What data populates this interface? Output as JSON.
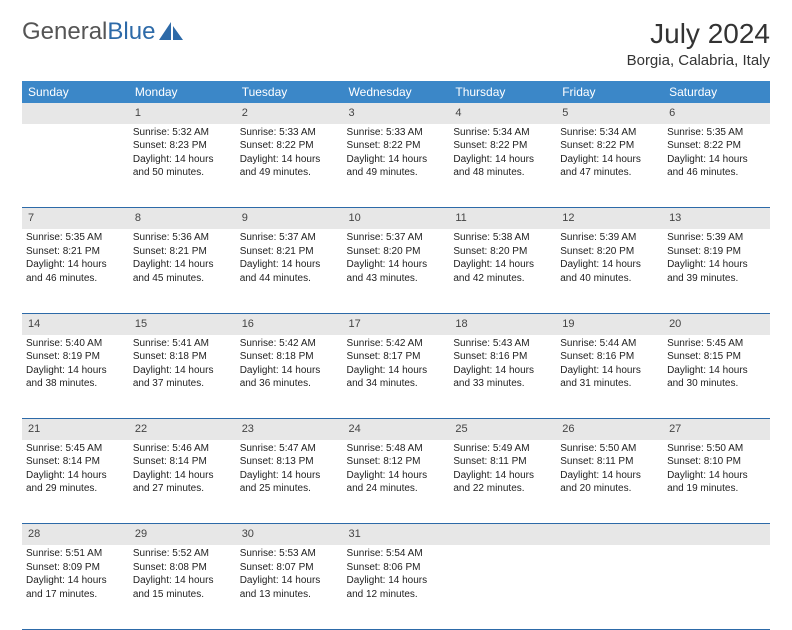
{
  "logo": {
    "text1": "General",
    "text2": "Blue"
  },
  "title": "July 2024",
  "location": "Borgia, Calabria, Italy",
  "colors": {
    "header_bg": "#3b87c8",
    "header_fg": "#ffffff",
    "daynum_bg": "#e7e7e7",
    "border": "#2d6aa8",
    "logo_gray": "#555555",
    "logo_blue": "#2d6aa8"
  },
  "weekdays": [
    "Sunday",
    "Monday",
    "Tuesday",
    "Wednesday",
    "Thursday",
    "Friday",
    "Saturday"
  ],
  "weeks": [
    {
      "nums": [
        "",
        "1",
        "2",
        "3",
        "4",
        "5",
        "6"
      ],
      "cells": [
        null,
        {
          "sr": "5:32 AM",
          "ss": "8:23 PM",
          "dl": "14 hours and 50 minutes."
        },
        {
          "sr": "5:33 AM",
          "ss": "8:22 PM",
          "dl": "14 hours and 49 minutes."
        },
        {
          "sr": "5:33 AM",
          "ss": "8:22 PM",
          "dl": "14 hours and 49 minutes."
        },
        {
          "sr": "5:34 AM",
          "ss": "8:22 PM",
          "dl": "14 hours and 48 minutes."
        },
        {
          "sr": "5:34 AM",
          "ss": "8:22 PM",
          "dl": "14 hours and 47 minutes."
        },
        {
          "sr": "5:35 AM",
          "ss": "8:22 PM",
          "dl": "14 hours and 46 minutes."
        }
      ]
    },
    {
      "nums": [
        "7",
        "8",
        "9",
        "10",
        "11",
        "12",
        "13"
      ],
      "cells": [
        {
          "sr": "5:35 AM",
          "ss": "8:21 PM",
          "dl": "14 hours and 46 minutes."
        },
        {
          "sr": "5:36 AM",
          "ss": "8:21 PM",
          "dl": "14 hours and 45 minutes."
        },
        {
          "sr": "5:37 AM",
          "ss": "8:21 PM",
          "dl": "14 hours and 44 minutes."
        },
        {
          "sr": "5:37 AM",
          "ss": "8:20 PM",
          "dl": "14 hours and 43 minutes."
        },
        {
          "sr": "5:38 AM",
          "ss": "8:20 PM",
          "dl": "14 hours and 42 minutes."
        },
        {
          "sr": "5:39 AM",
          "ss": "8:20 PM",
          "dl": "14 hours and 40 minutes."
        },
        {
          "sr": "5:39 AM",
          "ss": "8:19 PM",
          "dl": "14 hours and 39 minutes."
        }
      ]
    },
    {
      "nums": [
        "14",
        "15",
        "16",
        "17",
        "18",
        "19",
        "20"
      ],
      "cells": [
        {
          "sr": "5:40 AM",
          "ss": "8:19 PM",
          "dl": "14 hours and 38 minutes."
        },
        {
          "sr": "5:41 AM",
          "ss": "8:18 PM",
          "dl": "14 hours and 37 minutes."
        },
        {
          "sr": "5:42 AM",
          "ss": "8:18 PM",
          "dl": "14 hours and 36 minutes."
        },
        {
          "sr": "5:42 AM",
          "ss": "8:17 PM",
          "dl": "14 hours and 34 minutes."
        },
        {
          "sr": "5:43 AM",
          "ss": "8:16 PM",
          "dl": "14 hours and 33 minutes."
        },
        {
          "sr": "5:44 AM",
          "ss": "8:16 PM",
          "dl": "14 hours and 31 minutes."
        },
        {
          "sr": "5:45 AM",
          "ss": "8:15 PM",
          "dl": "14 hours and 30 minutes."
        }
      ]
    },
    {
      "nums": [
        "21",
        "22",
        "23",
        "24",
        "25",
        "26",
        "27"
      ],
      "cells": [
        {
          "sr": "5:45 AM",
          "ss": "8:14 PM",
          "dl": "14 hours and 29 minutes."
        },
        {
          "sr": "5:46 AM",
          "ss": "8:14 PM",
          "dl": "14 hours and 27 minutes."
        },
        {
          "sr": "5:47 AM",
          "ss": "8:13 PM",
          "dl": "14 hours and 25 minutes."
        },
        {
          "sr": "5:48 AM",
          "ss": "8:12 PM",
          "dl": "14 hours and 24 minutes."
        },
        {
          "sr": "5:49 AM",
          "ss": "8:11 PM",
          "dl": "14 hours and 22 minutes."
        },
        {
          "sr": "5:50 AM",
          "ss": "8:11 PM",
          "dl": "14 hours and 20 minutes."
        },
        {
          "sr": "5:50 AM",
          "ss": "8:10 PM",
          "dl": "14 hours and 19 minutes."
        }
      ]
    },
    {
      "nums": [
        "28",
        "29",
        "30",
        "31",
        "",
        "",
        ""
      ],
      "cells": [
        {
          "sr": "5:51 AM",
          "ss": "8:09 PM",
          "dl": "14 hours and 17 minutes."
        },
        {
          "sr": "5:52 AM",
          "ss": "8:08 PM",
          "dl": "14 hours and 15 minutes."
        },
        {
          "sr": "5:53 AM",
          "ss": "8:07 PM",
          "dl": "14 hours and 13 minutes."
        },
        {
          "sr": "5:54 AM",
          "ss": "8:06 PM",
          "dl": "14 hours and 12 minutes."
        },
        null,
        null,
        null
      ]
    }
  ],
  "labels": {
    "sunrise": "Sunrise:",
    "sunset": "Sunset:",
    "daylight": "Daylight:"
  }
}
